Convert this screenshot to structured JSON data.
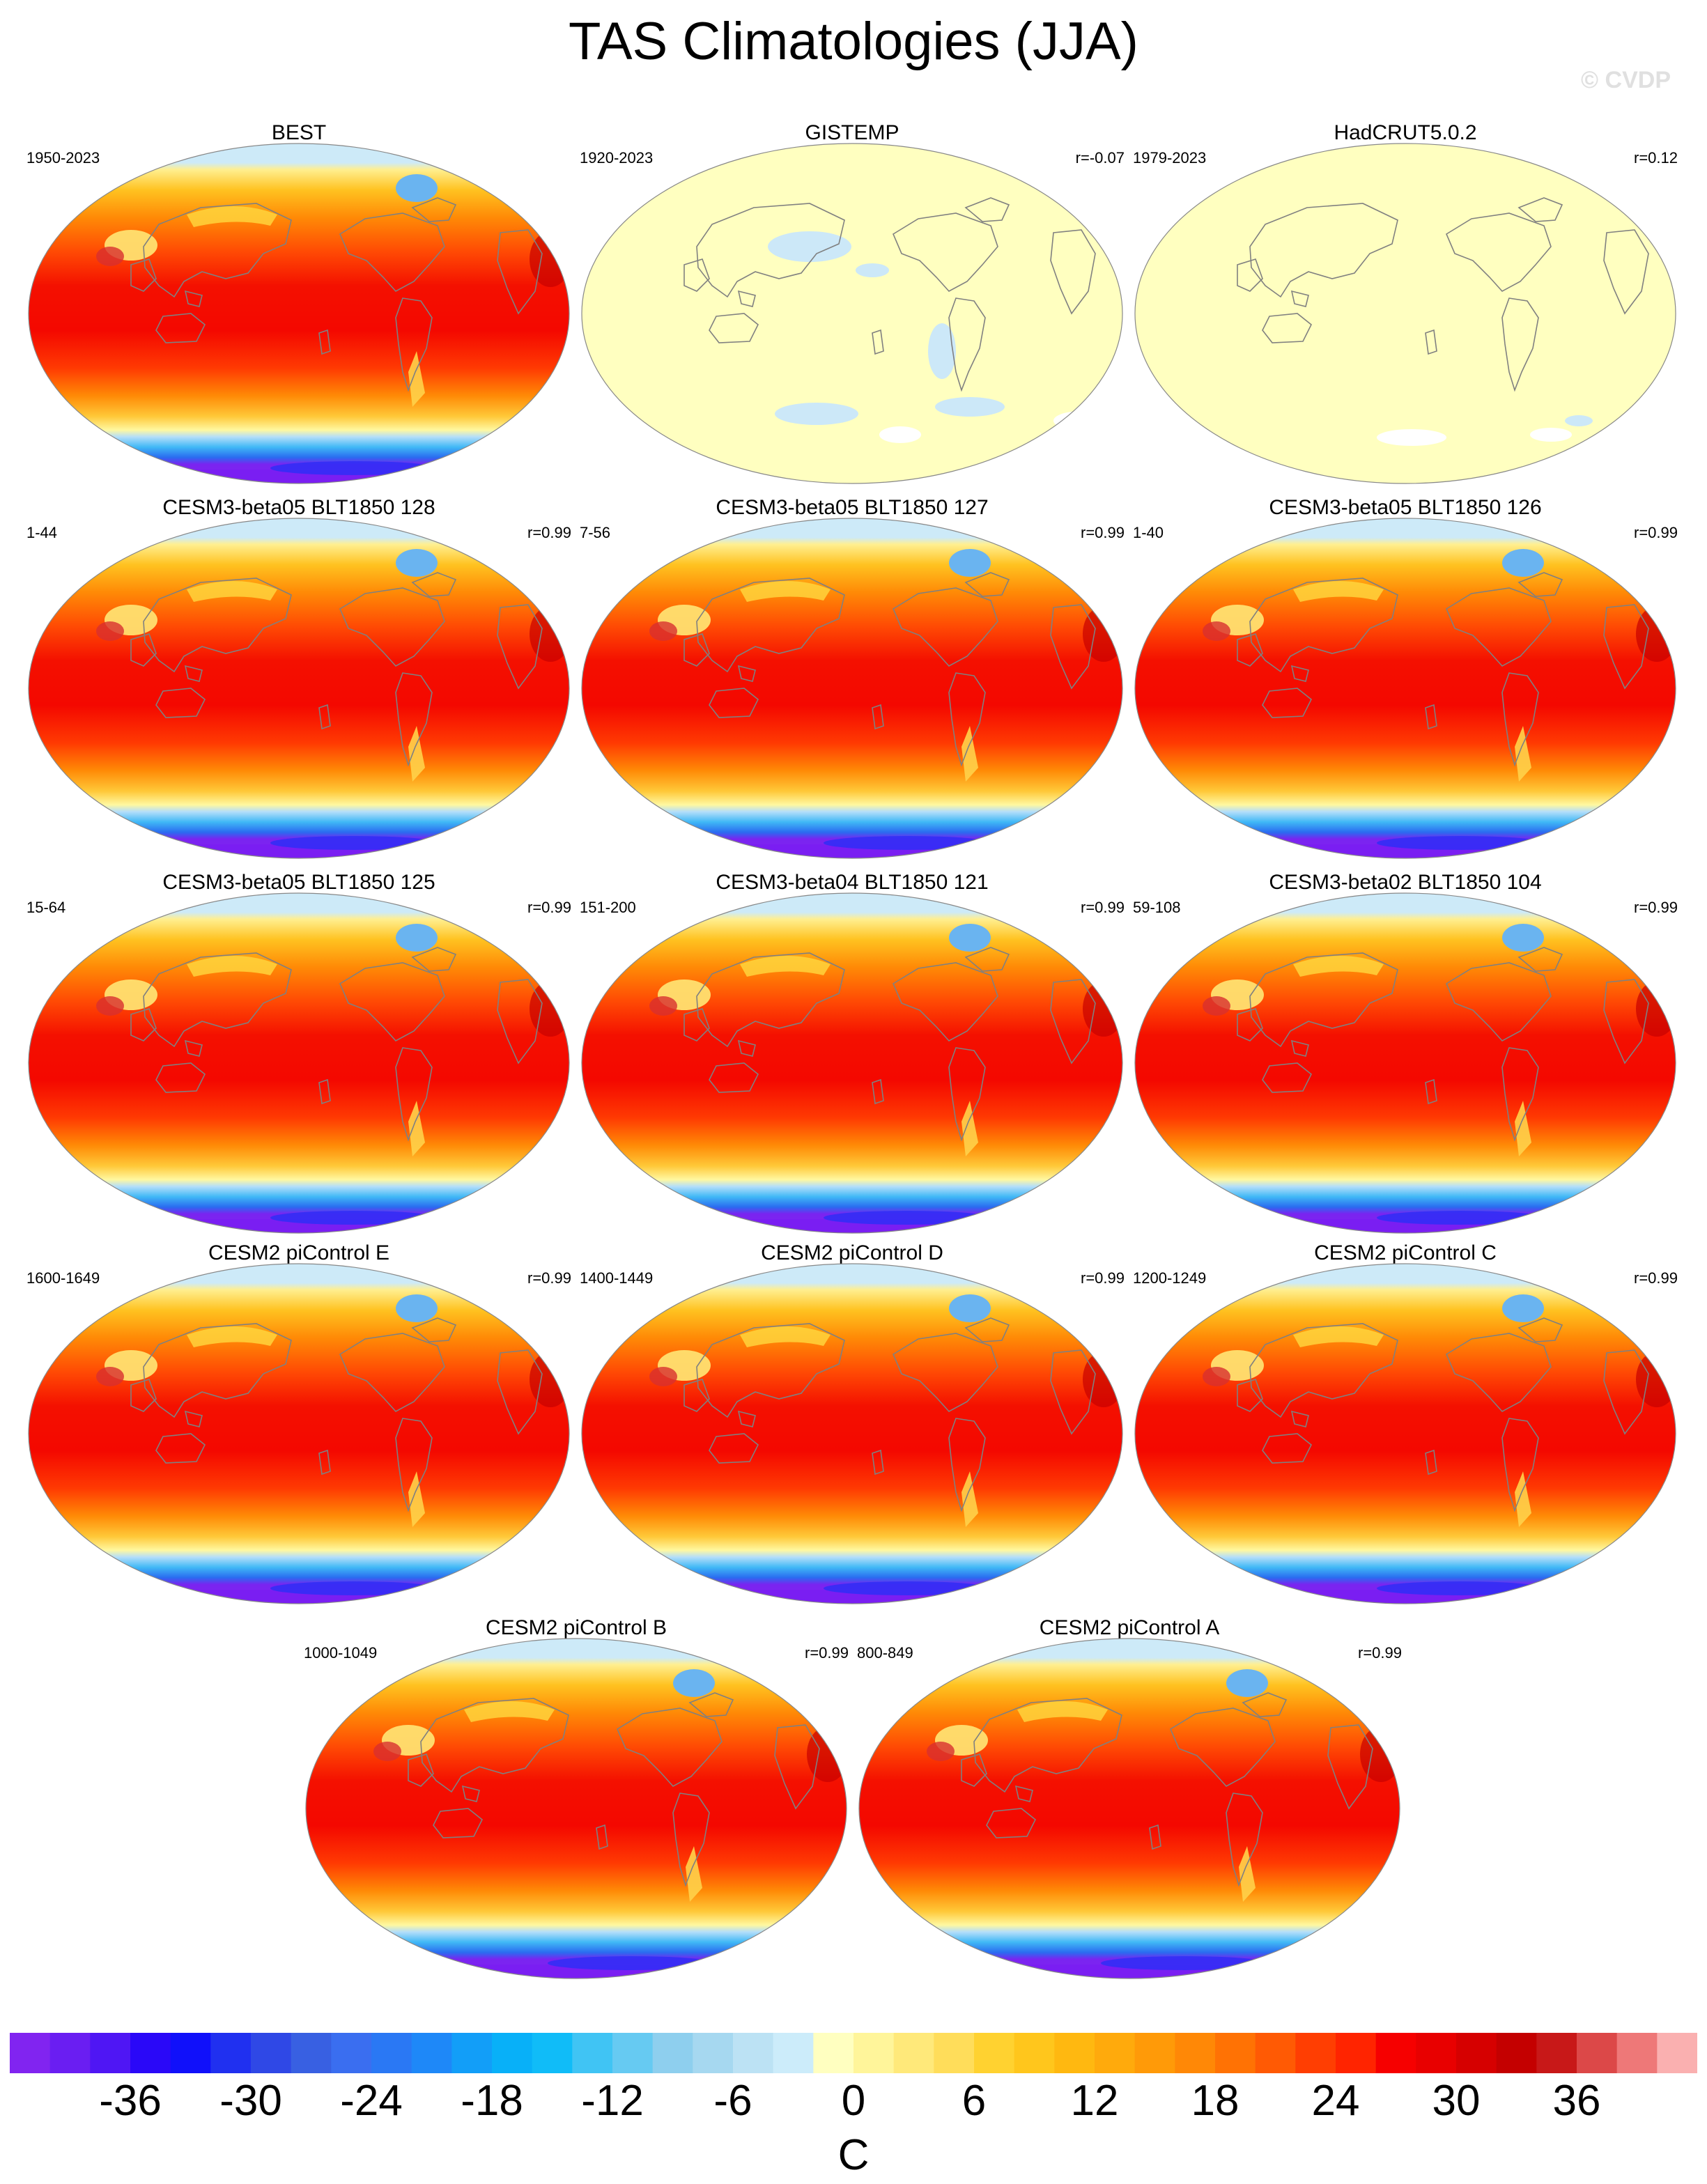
{
  "title": "TAS Climatologies (JJA)",
  "watermark": "© CVDP",
  "panels": [
    {
      "title": "BEST",
      "period": "1950-2023",
      "corr": "",
      "field": "full"
    },
    {
      "title": "GISTEMP",
      "period": "1920-2023",
      "corr": "r=-0.07",
      "field": "anomaly"
    },
    {
      "title": "HadCRUT5.0.2",
      "period": "1979-2023",
      "corr": "r=0.12",
      "field": "anomaly"
    },
    {
      "title": "CESM3-beta05 BLT1850 128",
      "period": "1-44",
      "corr": "r=0.99",
      "field": "full"
    },
    {
      "title": "CESM3-beta05 BLT1850 127",
      "period": "7-56",
      "corr": "r=0.99",
      "field": "full"
    },
    {
      "title": "CESM3-beta05 BLT1850 126",
      "period": "1-40",
      "corr": "r=0.99",
      "field": "full"
    },
    {
      "title": "CESM3-beta05 BLT1850 125",
      "period": "15-64",
      "corr": "r=0.99",
      "field": "full"
    },
    {
      "title": "CESM3-beta04 BLT1850 121",
      "period": "151-200",
      "corr": "r=0.99",
      "field": "full"
    },
    {
      "title": "CESM3-beta02 BLT1850 104",
      "period": "59-108",
      "corr": "r=0.99",
      "field": "full"
    },
    {
      "title": "CESM2 piControl E",
      "period": "1600-1649",
      "corr": "r=0.99",
      "field": "full"
    },
    {
      "title": "CESM2 piControl D",
      "period": "1400-1449",
      "corr": "r=0.99",
      "field": "full"
    },
    {
      "title": "CESM2 piControl C",
      "period": "1200-1249",
      "corr": "r=0.99",
      "field": "full"
    },
    {
      "title": "CESM2 piControl B",
      "period": "1000-1049",
      "corr": "r=0.99",
      "field": "full"
    },
    {
      "title": "CESM2 piControl A",
      "period": "800-849",
      "corr": "r=0.99",
      "field": "full"
    }
  ],
  "colorbar": {
    "unit": "C",
    "tick_labels": [
      "-36",
      "-30",
      "-24",
      "-18",
      "-12",
      "-6",
      "0",
      "6",
      "12",
      "18",
      "24",
      "30",
      "36"
    ],
    "colors": [
      "#8124f0",
      "#6a1ef2",
      "#4f16f4",
      "#2a08f8",
      "#1010fa",
      "#2030f0",
      "#2f48e6",
      "#3860e2",
      "#3a6ef0",
      "#2a78f4",
      "#1e88f8",
      "#129ef8",
      "#08b0f8",
      "#10bcf8",
      "#40c4f4",
      "#66caf2",
      "#8ecfee",
      "#a6d8f0",
      "#bce2f4",
      "#ccecfa",
      "#ffffc0",
      "#fff59a",
      "#ffe97a",
      "#ffdd5a",
      "#ffd230",
      "#ffc61c",
      "#ffb810",
      "#ffaa0c",
      "#ff9a08",
      "#ff8806",
      "#ff7204",
      "#ff5a04",
      "#ff3e02",
      "#ff2400",
      "#f60000",
      "#e80000",
      "#d60000",
      "#c40000",
      "#c81818",
      "#dc4848",
      "#ee7878",
      "#fab0b0"
    ]
  }
}
